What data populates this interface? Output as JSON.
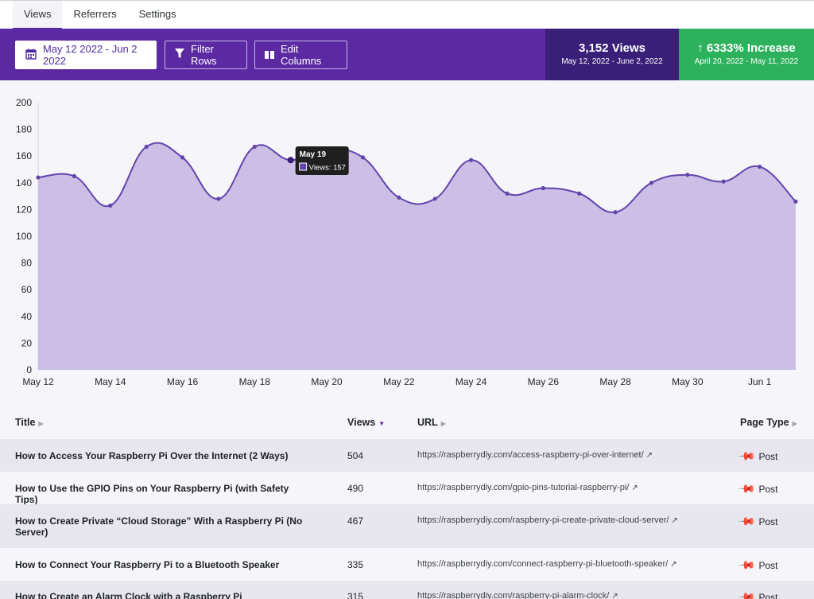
{
  "tabs": [
    {
      "label": "Views",
      "active": true
    },
    {
      "label": "Referrers",
      "active": false
    },
    {
      "label": "Settings",
      "active": false
    }
  ],
  "toolbar": {
    "date_range": "May 12 2022 - Jun 2 2022",
    "filter_label": "Filter Rows",
    "columns_label": "Edit Columns"
  },
  "stats": {
    "views": {
      "value": "3,152 Views",
      "range": "May 12, 2022 - June 2, 2022"
    },
    "increase": {
      "value": "6333% Increase",
      "range": "April 20, 2022 - May 11, 2022"
    }
  },
  "colors": {
    "purple": "#5b2aa3",
    "dark_purple": "#3a1f78",
    "green": "#2eb15d",
    "fill": "#cbbfe5",
    "line": "#6344ad"
  },
  "chart_data": {
    "type": "area",
    "x": [
      "May 12",
      "May 13",
      "May 14",
      "May 15",
      "May 16",
      "May 17",
      "May 18",
      "May 19",
      "May 20",
      "May 21",
      "May 22",
      "May 23",
      "May 24",
      "May 25",
      "May 26",
      "May 27",
      "May 28",
      "May 29",
      "May 30",
      "May 31",
      "Jun 1",
      "Jun 2"
    ],
    "values": [
      144,
      145,
      123,
      167,
      159,
      128,
      167,
      157,
      165,
      159,
      129,
      128,
      157,
      132,
      136,
      132,
      118,
      140,
      146,
      141,
      152,
      126
    ],
    "xticks": [
      "May 12",
      "May 14",
      "May 16",
      "May 18",
      "May 20",
      "May 22",
      "May 24",
      "May 26",
      "May 28",
      "May 30",
      "Jun 1"
    ],
    "yticks": [
      "0",
      "20",
      "40",
      "60",
      "80",
      "100",
      "120",
      "140",
      "160",
      "180",
      "200"
    ],
    "ylim": [
      0,
      200
    ],
    "tooltip": {
      "title": "May 19",
      "label": "Views: 157"
    }
  },
  "table": {
    "headers": {
      "title": "Title",
      "views": "Views",
      "url": "URL",
      "type": "Page Type"
    },
    "rows": [
      {
        "title": "How to Access Your Raspberry Pi Over the Internet (2 Ways)",
        "views": "504",
        "url": "https://raspberrydiy.com/access-raspberry-pi-over-internet/",
        "type": "Post"
      },
      {
        "title": "How to Use the GPIO Pins on Your Raspberry Pi (with Safety Tips)",
        "views": "490",
        "url": "https://raspberrydiy.com/gpio-pins-tutorial-raspberry-pi/",
        "type": "Post"
      },
      {
        "title": "How to Create Private “Cloud Storage” With a Raspberry Pi (No Server)",
        "views": "467",
        "url": "https://raspberrydiy.com/raspberry-pi-create-private-cloud-server/",
        "type": "Post"
      },
      {
        "title": "How to Connect Your Raspberry Pi to a Bluetooth Speaker",
        "views": "335",
        "url": "https://raspberrydiy.com/connect-raspberry-pi-bluetooth-speaker/",
        "type": "Post"
      },
      {
        "title": "How to Create an Alarm Clock with a Raspberry Pi",
        "views": "315",
        "url": "https://raspberrydiy.com/raspberry-pi-alarm-clock/",
        "type": "Post"
      }
    ]
  }
}
